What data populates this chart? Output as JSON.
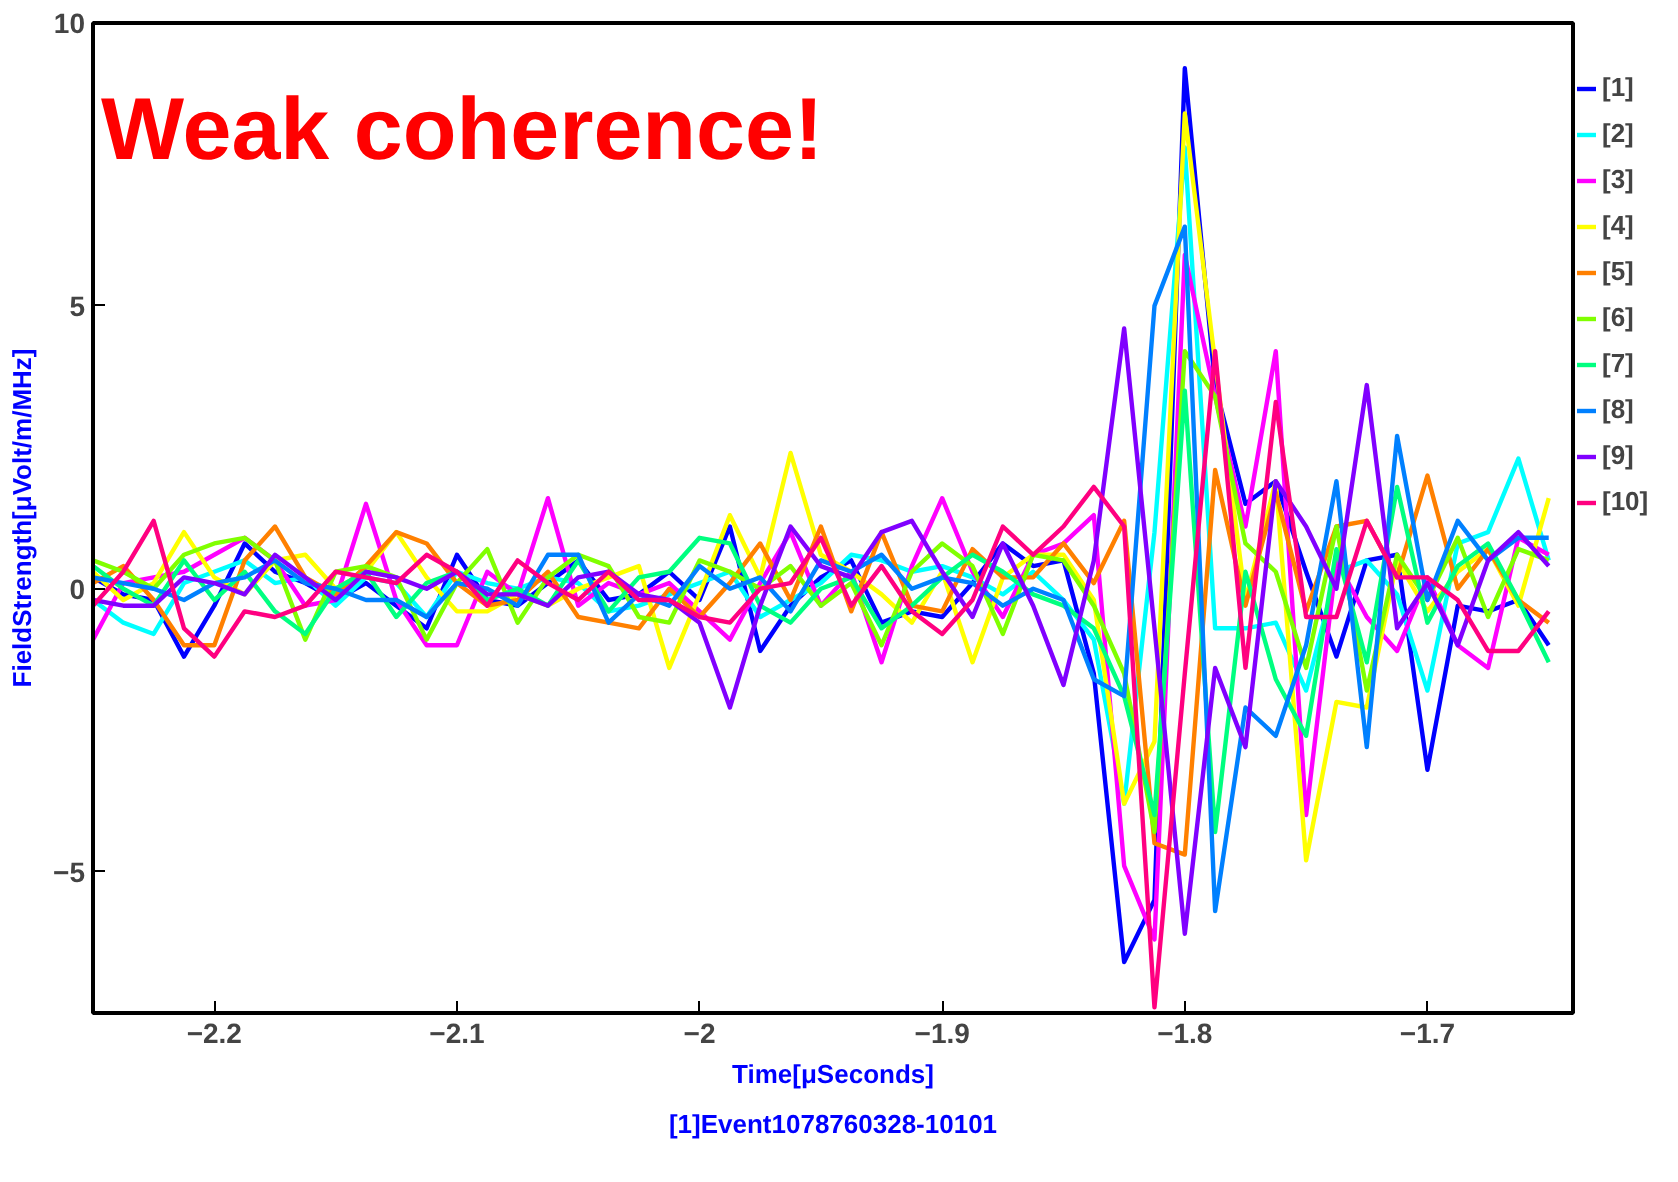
{
  "chart_data": {
    "type": "line",
    "xlabel": "Time[μSeconds]",
    "ylabel": "FieldStrength[μVolt/m/MHz]",
    "annotations": [
      "Weak coherence!",
      "[1]Event1078760328-10101"
    ],
    "x": [
      -2.25,
      -2.2375,
      -2.225,
      -2.2125,
      -2.2,
      -2.1875,
      -2.175,
      -2.1625,
      -2.15,
      -2.1375,
      -2.125,
      -2.1125,
      -2.1,
      -2.0875,
      -2.075,
      -2.0625,
      -2.05,
      -2.0375,
      -2.025,
      -2.0125,
      -2,
      -1.9875,
      -1.975,
      -1.9625,
      -1.95,
      -1.9375,
      -1.925,
      -1.9125,
      -1.9,
      -1.8875,
      -1.875,
      -1.8625,
      -1.85,
      -1.8375,
      -1.825,
      -1.8125,
      -1.8,
      -1.7875,
      -1.775,
      -1.7625,
      -1.75,
      -1.7375,
      -1.725,
      -1.7125,
      -1.7,
      -1.6875,
      -1.675,
      -1.6625,
      -1.65
    ],
    "xlim": [
      -2.25,
      -1.64
    ],
    "ylim": [
      -7.5,
      10
    ],
    "xticks": [
      {
        "value": -2.2,
        "label": "−2.2"
      },
      {
        "value": -2.1,
        "label": "−2.1"
      },
      {
        "value": -2,
        "label": "−2"
      },
      {
        "value": -1.9,
        "label": "−1.9"
      },
      {
        "value": -1.8,
        "label": "−1.8"
      },
      {
        "value": -1.7,
        "label": "−1.7"
      }
    ],
    "yticks": [
      {
        "value": -5,
        "label": "−5"
      },
      0,
      5,
      10
    ],
    "grid": false,
    "legend": "right",
    "marker": "none",
    "line_style": "solid",
    "series": [
      {
        "name": "[1]",
        "color": "#0000ff",
        "values": [
          0.2,
          -0.1,
          -0.2,
          -1.2,
          -0.3,
          0.8,
          0.3,
          0.1,
          -0.2,
          0.1,
          -0.3,
          -0.7,
          0.6,
          -0.2,
          -0.3,
          0.1,
          0.5,
          -0.2,
          -0.1,
          0.3,
          -0.2,
          1.1,
          -1.1,
          -0.3,
          0.2,
          0.5,
          -0.6,
          -0.4,
          -0.5,
          0.1,
          0.8,
          0.4,
          0.5,
          -1.5,
          -6.6,
          -5.5,
          9.2,
          3.6,
          1.5,
          1.9,
          0.3,
          -1.2,
          0.5,
          0.6,
          -3.2,
          -0.3,
          -0.4,
          -0.2,
          -1.0
        ]
      },
      {
        "name": "[2]",
        "color": "#00ffff",
        "values": [
          -0.2,
          -0.6,
          -0.8,
          0.1,
          0.3,
          0.5,
          0.1,
          0.2,
          -0.3,
          0.2,
          0.1,
          -0.5,
          0.3,
          0.1,
          0.0,
          0.2,
          0.1,
          -0.4,
          -0.3,
          -0.1,
          0.1,
          0.3,
          -0.5,
          -0.2,
          0.1,
          0.6,
          0.5,
          0.3,
          0.4,
          0.2,
          -0.1,
          0.3,
          -0.2,
          -0.9,
          -3.8,
          1.0,
          7.8,
          -0.7,
          -0.7,
          -0.6,
          -1.8,
          0.3,
          0.5,
          -0.1,
          -1.8,
          0.8,
          1.0,
          2.3,
          0.5
        ]
      },
      {
        "name": "[3]",
        "color": "#ff00ff",
        "values": [
          -0.9,
          0.1,
          0.2,
          0.3,
          0.6,
          0.9,
          0.5,
          -0.3,
          -0.2,
          1.5,
          -0.2,
          -1.0,
          -1.0,
          0.3,
          -0.1,
          1.6,
          -0.3,
          0.1,
          -0.1,
          0.1,
          -0.4,
          -0.9,
          0.1,
          1.0,
          -0.3,
          0.3,
          -1.3,
          0.4,
          1.6,
          0.3,
          -0.5,
          0.6,
          0.8,
          1.3,
          -4.9,
          -6.2,
          5.9,
          3.4,
          1.1,
          4.2,
          -4.0,
          0.5,
          -0.5,
          -1.1,
          0.2,
          -1.0,
          -1.4,
          0.9,
          0.6
        ]
      },
      {
        "name": "[4]",
        "color": "#ffff00",
        "values": [
          0.3,
          -0.2,
          0.1,
          1.0,
          0.2,
          -0.1,
          0.5,
          0.6,
          0.0,
          0.3,
          1.0,
          0.2,
          -0.4,
          -0.4,
          -0.1,
          -0.3,
          0.0,
          0.2,
          0.4,
          -1.4,
          -0.1,
          1.3,
          0.2,
          2.4,
          0.6,
          0.3,
          -0.1,
          -0.6,
          0.3,
          -1.3,
          0.2,
          0.6,
          0.6,
          -0.2,
          -3.8,
          -2.7,
          8.4,
          4.0,
          -0.2,
          1.9,
          -4.8,
          -2.0,
          -2.1,
          0.5,
          -0.4,
          0.3,
          0.7,
          -0.3,
          1.6
        ]
      },
      {
        "name": "[5]",
        "color": "#ff8000",
        "values": [
          0.1,
          0.4,
          -0.2,
          -1.0,
          -1.0,
          0.5,
          1.1,
          0.2,
          -0.1,
          0.4,
          1.0,
          0.8,
          0.1,
          -0.3,
          -0.2,
          0.3,
          -0.5,
          -0.6,
          -0.7,
          0.0,
          -0.5,
          0.1,
          0.8,
          -0.2,
          1.1,
          -0.4,
          1.0,
          -0.3,
          -0.4,
          0.7,
          0.2,
          0.2,
          0.8,
          0.1,
          1.2,
          -4.5,
          -4.7,
          2.1,
          -0.3,
          1.7,
          -0.4,
          1.1,
          1.2,
          0.2,
          2.0,
          0.0,
          0.7,
          -0.2,
          -0.6
        ]
      },
      {
        "name": "[6]",
        "color": "#80ff00",
        "values": [
          0.5,
          0.3,
          0.0,
          0.6,
          0.8,
          0.9,
          0.5,
          -0.9,
          0.3,
          0.4,
          0.2,
          -0.9,
          0.1,
          0.7,
          -0.6,
          0.2,
          0.6,
          0.4,
          -0.5,
          -0.6,
          0.5,
          0.3,
          0.0,
          0.4,
          -0.3,
          0.1,
          -1.0,
          0.3,
          0.8,
          0.4,
          -0.8,
          0.6,
          0.5,
          -0.3,
          -1.5,
          -4.3,
          4.2,
          3.4,
          0.8,
          0.3,
          -1.4,
          1.1,
          -1.8,
          0.6,
          -0.2,
          0.9,
          -0.5,
          0.7,
          0.5
        ]
      },
      {
        "name": "[7]",
        "color": "#00ff80",
        "values": [
          0.4,
          0.0,
          -0.3,
          0.5,
          -0.2,
          0.3,
          -0.4,
          -0.8,
          0.0,
          0.3,
          -0.5,
          0.1,
          0.3,
          -0.2,
          0.0,
          -0.3,
          0.5,
          -0.4,
          0.2,
          0.3,
          0.9,
          0.8,
          -0.3,
          -0.6,
          0.0,
          0.2,
          -0.7,
          -0.3,
          0.2,
          0.6,
          0.3,
          -0.1,
          -0.3,
          -0.7,
          -1.9,
          -4.0,
          3.5,
          -4.3,
          0.3,
          -1.6,
          -2.6,
          0.7,
          -1.3,
          1.8,
          -0.6,
          0.4,
          0.8,
          -0.2,
          -1.3
        ]
      },
      {
        "name": "[8]",
        "color": "#0080ff",
        "values": [
          0.2,
          0.1,
          0.0,
          -0.2,
          0.1,
          0.2,
          0.5,
          0.1,
          0.0,
          -0.2,
          -0.2,
          -0.5,
          0.1,
          0.0,
          -0.3,
          0.6,
          0.6,
          -0.6,
          -0.1,
          -0.3,
          0.4,
          0.0,
          0.2,
          -0.4,
          0.5,
          0.3,
          0.6,
          0.0,
          0.2,
          0.1,
          -0.3,
          0.0,
          -0.2,
          -1.6,
          -1.9,
          5.0,
          6.4,
          -5.7,
          -2.1,
          -2.6,
          -1.0,
          1.9,
          -2.8,
          2.7,
          -0.2,
          1.2,
          0.5,
          0.9,
          0.9
        ]
      },
      {
        "name": "[9]",
        "color": "#8000ff",
        "values": [
          -0.2,
          -0.3,
          -0.3,
          0.2,
          0.1,
          -0.1,
          0.6,
          0.2,
          -0.2,
          0.3,
          0.2,
          0.0,
          0.3,
          -0.1,
          -0.1,
          -0.3,
          0.2,
          0.3,
          -0.1,
          -0.2,
          -0.6,
          -2.1,
          -0.3,
          1.1,
          0.4,
          0.2,
          1.0,
          1.2,
          0.3,
          -0.5,
          0.8,
          -0.3,
          -1.7,
          0.5,
          4.6,
          -0.7,
          -6.1,
          -1.4,
          -2.8,
          1.9,
          1.1,
          0.0,
          3.6,
          -0.7,
          0.1,
          -1.0,
          0.5,
          1.0,
          0.4
        ]
      },
      {
        "name": "[10]",
        "color": "#ff0080",
        "values": [
          -0.3,
          0.3,
          1.2,
          -0.7,
          -1.2,
          -0.4,
          -0.5,
          -0.3,
          0.3,
          0.2,
          0.1,
          0.6,
          0.3,
          -0.3,
          0.5,
          0.1,
          -0.2,
          0.3,
          -0.2,
          -0.2,
          -0.5,
          -0.6,
          0.0,
          0.1,
          0.9,
          -0.3,
          0.4,
          -0.4,
          -0.8,
          -0.2,
          1.1,
          0.6,
          1.1,
          1.8,
          1.1,
          -7.4,
          -1.5,
          4.2,
          -1.4,
          3.3,
          -0.5,
          -0.5,
          1.2,
          0.2,
          0.2,
          -0.2,
          -1.1,
          -1.1,
          -0.4
        ]
      }
    ]
  }
}
